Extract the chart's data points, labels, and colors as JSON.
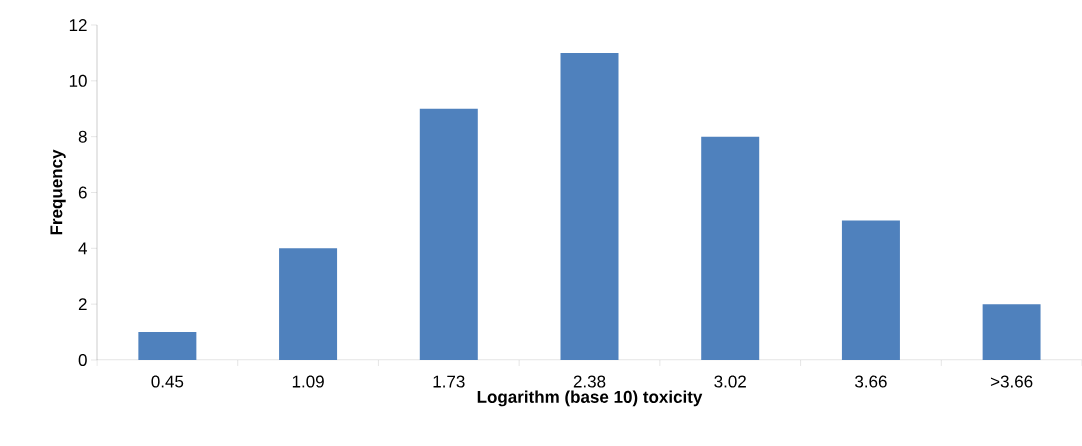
{
  "chart_data": {
    "type": "bar",
    "xlabel": "Logarithm (base 10) toxicity",
    "ylabel": "Frequency",
    "categories": [
      "0.45",
      "1.09",
      "1.73",
      "2.38",
      "3.02",
      "3.66",
      ">3.66"
    ],
    "values": [
      1,
      4,
      9,
      11,
      8,
      5,
      2
    ],
    "color": "#4f81bd",
    "ylim": [
      0,
      12
    ],
    "yticks": [
      0,
      2,
      4,
      6,
      8,
      10,
      12
    ]
  }
}
